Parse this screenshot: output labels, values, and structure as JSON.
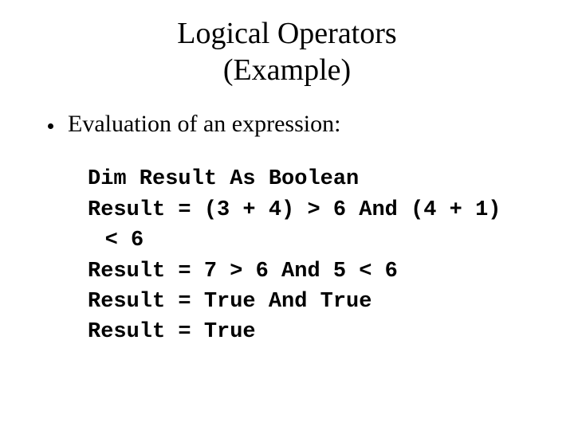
{
  "title_line1": "Logical Operators",
  "title_line2": "(Example)",
  "bullet_text": "Evaluation of an expression:",
  "code": {
    "line1": "Dim Result As Boolean",
    "line2a": "Result = (3 + 4) > 6 And (4 + 1)",
    "line2b": "< 6",
    "line3": "Result = 7 > 6 And 5 < 6",
    "line4": "Result = True And True",
    "line5": "Result = True"
  },
  "style": {
    "background_color": "#ffffff",
    "text_color": "#000000",
    "title_font": "Times New Roman",
    "title_fontsize_pt": 29,
    "body_font": "Times New Roman",
    "body_fontsize_pt": 23,
    "code_font": "Courier New",
    "code_fontsize_pt": 20,
    "code_fontweight": "bold"
  }
}
